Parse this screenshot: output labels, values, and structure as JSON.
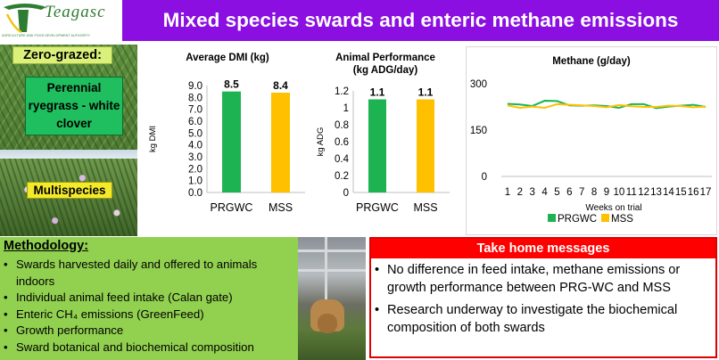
{
  "header": {
    "logo_word": "Teagasc",
    "logo_tagline": "AGRICULTURE AND FOOD DEVELOPMENT AUTHORITY",
    "title": "Mixed species swards and enteric methane emissions"
  },
  "photo_panel": {
    "zero_grazed": "Zero-grazed:",
    "prg_label": "Perennial ryegrass - white clover",
    "mss_label": "Multispecies"
  },
  "colors": {
    "title_bar": "#8a0fe0",
    "prgwc": "#1db352",
    "mss": "#ffc000",
    "methodology_bg": "#92d050",
    "take_home_red": "#ff0000"
  },
  "chart_data": [
    {
      "type": "bar",
      "title": "Average DMI (kg)",
      "ylabel": "kg DMI",
      "categories": [
        "PRGWC",
        "MSS"
      ],
      "values": [
        8.5,
        8.4
      ],
      "value_labels": [
        "8.5",
        "8.4"
      ],
      "ylim": [
        0,
        9
      ],
      "yticks": [
        "0.0",
        "1.0",
        "2.0",
        "3.0",
        "4.0",
        "5.0",
        "6.0",
        "7.0",
        "8.0",
        "9.0"
      ]
    },
    {
      "type": "bar",
      "title": "Animal Performance (kg ADG/day)",
      "ylabel": "kg ADG",
      "categories": [
        "PRGWC",
        "MSS"
      ],
      "values": [
        1.1,
        1.1
      ],
      "value_labels": [
        "1.1",
        "1.1"
      ],
      "ylim": [
        0,
        1.2
      ],
      "yticks": [
        "0",
        "0.2",
        "0.4",
        "0.6",
        "0.8",
        "1",
        "1.2"
      ]
    },
    {
      "type": "line",
      "title": "Methane (g/day)",
      "xlabel": "Weeks on trial",
      "x": [
        "1",
        "2",
        "3",
        "4",
        "5",
        "6",
        "7",
        "8",
        "9",
        "10",
        "11",
        "12",
        "13",
        "14",
        "15",
        "16",
        "17"
      ],
      "ylim": [
        0,
        300
      ],
      "yticks": [
        "0",
        "150",
        "300"
      ],
      "series": [
        {
          "name": "PRGWC",
          "values": [
            235,
            233,
            228,
            245,
            244,
            230,
            229,
            230,
            228,
            222,
            234,
            234,
            221,
            226,
            229,
            232,
            225
          ]
        },
        {
          "name": "MSS",
          "values": [
            230,
            222,
            226,
            222,
            234,
            232,
            230,
            228,
            224,
            231,
            227,
            225,
            225,
            229,
            228,
            224,
            226
          ]
        }
      ],
      "legend": "bottom"
    }
  ],
  "methodology": {
    "title": "Methodology:",
    "items": [
      "Swards harvested daily and offered to animals indoors",
      "Individual animal feed intake (Calan gate)",
      "Enteric  CH₄ emissions (GreenFeed)",
      "Growth performance",
      "Sward botanical and biochemical composition"
    ]
  },
  "take_home": {
    "title": "Take home messages",
    "items": [
      "No difference in feed intake, methane emissions or growth performance between PRG-WC and MSS",
      "Research underway to investigate the biochemical composition of both swards"
    ]
  }
}
